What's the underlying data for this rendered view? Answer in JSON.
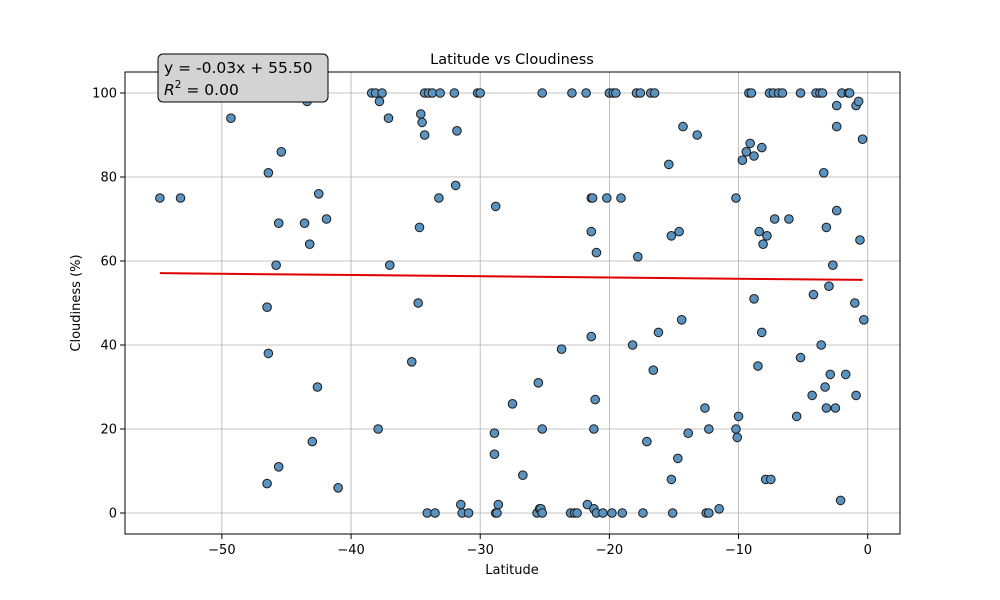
{
  "chart_data": {
    "type": "scatter",
    "title": "Latitude vs Cloudiness",
    "xlabel": "Latitude",
    "ylabel": "Cloudiness (%)",
    "xlim": [
      -57.5,
      2.5
    ],
    "ylim": [
      -5,
      105
    ],
    "x_ticks": [
      -50,
      -40,
      -30,
      -20,
      -10,
      0
    ],
    "y_ticks": [
      0,
      20,
      40,
      60,
      80,
      100
    ],
    "x_tick_labels": [
      "−50",
      "−40",
      "−30",
      "−20",
      "−10",
      "0"
    ],
    "y_tick_labels": [
      "0",
      "20",
      "40",
      "60",
      "80",
      "100"
    ],
    "grid": true,
    "colors": {
      "point_fill": "#5b93c0",
      "point_edge": "#1a1a1a",
      "regression_line": "#e00000",
      "annotation_bg": "#d3d3d3",
      "grid": "#b0b0b0"
    },
    "regression": {
      "equation_label": "y = -0.03x + 55.50",
      "r2_label": "R",
      "r2_sup": "2",
      "r2_value": " = 0.00",
      "x_range": [
        -54.8,
        -0.4
      ],
      "y_range": [
        57.1,
        55.5
      ]
    },
    "points": [
      [
        -54.8,
        75
      ],
      [
        -53.2,
        75
      ],
      [
        -49.3,
        94
      ],
      [
        -46.4,
        81
      ],
      [
        -46.5,
        49
      ],
      [
        -46.4,
        38
      ],
      [
        -46.5,
        7
      ],
      [
        -45.8,
        59
      ],
      [
        -45.6,
        69
      ],
      [
        -45.4,
        86
      ],
      [
        -45.6,
        11
      ],
      [
        -43.6,
        69
      ],
      [
        -43.2,
        64
      ],
      [
        -43.4,
        98
      ],
      [
        -43.0,
        17
      ],
      [
        -42.6,
        30
      ],
      [
        -42.5,
        76
      ],
      [
        -41.9,
        70
      ],
      [
        -41.0,
        6
      ],
      [
        -38.4,
        100
      ],
      [
        -38.1,
        100
      ],
      [
        -37.8,
        98
      ],
      [
        -37.6,
        100
      ],
      [
        -37.9,
        20
      ],
      [
        -37.1,
        94
      ],
      [
        -37.0,
        59
      ],
      [
        -35.3,
        36
      ],
      [
        -34.8,
        50
      ],
      [
        -34.7,
        68
      ],
      [
        -34.6,
        95
      ],
      [
        -34.5,
        93
      ],
      [
        -34.3,
        90
      ],
      [
        -34.3,
        100
      ],
      [
        -34.1,
        0
      ],
      [
        -34.0,
        100
      ],
      [
        -33.7,
        100
      ],
      [
        -33.5,
        0
      ],
      [
        -33.2,
        75
      ],
      [
        -33.1,
        100
      ],
      [
        -32.0,
        100
      ],
      [
        -31.9,
        78
      ],
      [
        -31.8,
        91
      ],
      [
        -31.5,
        2
      ],
      [
        -31.4,
        0
      ],
      [
        -30.9,
        0
      ],
      [
        -30.2,
        100
      ],
      [
        -30.0,
        100
      ],
      [
        -28.9,
        19
      ],
      [
        -28.9,
        14
      ],
      [
        -28.8,
        73
      ],
      [
        -28.8,
        0
      ],
      [
        -28.7,
        0
      ],
      [
        -28.6,
        2
      ],
      [
        -27.5,
        26
      ],
      [
        -26.7,
        9
      ],
      [
        -25.6,
        0
      ],
      [
        -25.5,
        31
      ],
      [
        -25.4,
        1
      ],
      [
        -25.3,
        1
      ],
      [
        -25.2,
        0
      ],
      [
        -25.2,
        20
      ],
      [
        -25.2,
        100
      ],
      [
        -23.7,
        39
      ],
      [
        -23.0,
        0
      ],
      [
        -22.9,
        100
      ],
      [
        -22.7,
        0
      ],
      [
        -22.5,
        0
      ],
      [
        -21.8,
        100
      ],
      [
        -21.7,
        2
      ],
      [
        -21.4,
        67
      ],
      [
        -21.4,
        42
      ],
      [
        -21.4,
        75
      ],
      [
        -21.3,
        75
      ],
      [
        -21.2,
        1
      ],
      [
        -21.2,
        20
      ],
      [
        -21.1,
        27
      ],
      [
        -21.0,
        62
      ],
      [
        -21.0,
        0
      ],
      [
        -20.5,
        0
      ],
      [
        -20.2,
        75
      ],
      [
        -20.0,
        100
      ],
      [
        -19.8,
        0
      ],
      [
        -19.7,
        100
      ],
      [
        -19.5,
        100
      ],
      [
        -19.1,
        75
      ],
      [
        -19.0,
        0
      ],
      [
        -18.2,
        40
      ],
      [
        -17.9,
        100
      ],
      [
        -17.8,
        61
      ],
      [
        -17.6,
        100
      ],
      [
        -17.4,
        0
      ],
      [
        -17.1,
        17
      ],
      [
        -16.8,
        100
      ],
      [
        -16.6,
        34
      ],
      [
        -16.5,
        100
      ],
      [
        -16.2,
        43
      ],
      [
        -15.4,
        83
      ],
      [
        -15.2,
        66
      ],
      [
        -15.2,
        8
      ],
      [
        -15.1,
        0
      ],
      [
        -14.7,
        13
      ],
      [
        -14.6,
        67
      ],
      [
        -14.4,
        46
      ],
      [
        -14.3,
        92
      ],
      [
        -13.9,
        19
      ],
      [
        -13.2,
        90
      ],
      [
        -12.6,
        25
      ],
      [
        -12.5,
        0
      ],
      [
        -12.3,
        0
      ],
      [
        -12.3,
        20
      ],
      [
        -11.5,
        1
      ],
      [
        -10.2,
        75
      ],
      [
        -10.2,
        20
      ],
      [
        -10.1,
        18
      ],
      [
        -10.0,
        23
      ],
      [
        -9.7,
        84
      ],
      [
        -9.4,
        86
      ],
      [
        -9.2,
        100
      ],
      [
        -9.0,
        100
      ],
      [
        -9.1,
        88
      ],
      [
        -8.8,
        85
      ],
      [
        -8.8,
        51
      ],
      [
        -8.5,
        35
      ],
      [
        -8.4,
        67
      ],
      [
        -8.2,
        43
      ],
      [
        -8.1,
        64
      ],
      [
        -8.2,
        87
      ],
      [
        -7.9,
        8
      ],
      [
        -7.8,
        66
      ],
      [
        -7.6,
        100
      ],
      [
        -7.5,
        8
      ],
      [
        -7.2,
        70
      ],
      [
        -7.3,
        100
      ],
      [
        -6.9,
        100
      ],
      [
        -6.6,
        100
      ],
      [
        -6.1,
        70
      ],
      [
        -5.5,
        23
      ],
      [
        -5.2,
        37
      ],
      [
        -5.2,
        100
      ],
      [
        -4.3,
        28
      ],
      [
        -4.2,
        52
      ],
      [
        -4.0,
        100
      ],
      [
        -3.7,
        100
      ],
      [
        -3.6,
        40
      ],
      [
        -3.5,
        100
      ],
      [
        -3.4,
        81
      ],
      [
        -3.3,
        30
      ],
      [
        -3.2,
        25
      ],
      [
        -3.2,
        68
      ],
      [
        -3.0,
        54
      ],
      [
        -2.9,
        33
      ],
      [
        -2.7,
        59
      ],
      [
        -2.5,
        25
      ],
      [
        -2.4,
        72
      ],
      [
        -2.4,
        92
      ],
      [
        -2.4,
        97
      ],
      [
        -2.1,
        3
      ],
      [
        -2.0,
        100
      ],
      [
        -1.7,
        33
      ],
      [
        -1.5,
        100
      ],
      [
        -1.4,
        100
      ],
      [
        -1.0,
        50
      ],
      [
        -0.9,
        28
      ],
      [
        -0.9,
        97
      ],
      [
        -0.7,
        98
      ],
      [
        -0.6,
        65
      ],
      [
        -0.4,
        89
      ],
      [
        -0.3,
        46
      ]
    ]
  }
}
